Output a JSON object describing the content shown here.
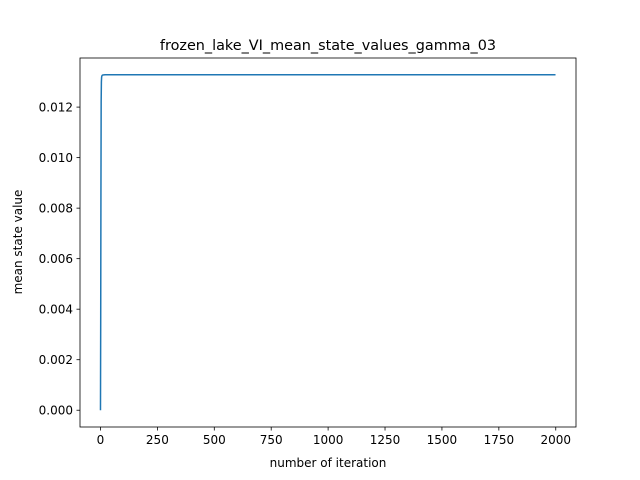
{
  "chart_data": {
    "type": "line",
    "title": "frozen_lake_VI_mean_state_values_gamma_03",
    "xlabel": "number of iteration",
    "ylabel": "mean state value",
    "xlim": [
      -89.95,
      2088.95
    ],
    "ylim": [
      -0.000664,
      0.013944
    ],
    "xticks": [
      0,
      250,
      500,
      750,
      1000,
      1250,
      1500,
      1750,
      2000
    ],
    "xtick_labels": [
      "0",
      "250",
      "500",
      "750",
      "1000",
      "1250",
      "1500",
      "1750",
      "2000"
    ],
    "yticks": [
      0.0,
      0.002,
      0.004,
      0.006,
      0.008,
      0.01,
      0.012
    ],
    "ytick_labels": [
      "0.000",
      "0.002",
      "0.004",
      "0.006",
      "0.008",
      "0.010",
      "0.012"
    ],
    "grid": false,
    "series": [
      {
        "color": "#1f77b4",
        "x": [
          0,
          1,
          2,
          3,
          4,
          5,
          6,
          8,
          10,
          20,
          50,
          100,
          500,
          1000,
          1500,
          1999
        ],
        "y": [
          0.0,
          0.0035,
          0.0085,
          0.0122,
          0.013,
          0.01318,
          0.01323,
          0.01326,
          0.01327,
          0.01328,
          0.01328,
          0.01328,
          0.01328,
          0.01328,
          0.01328,
          0.01328
        ]
      }
    ]
  }
}
